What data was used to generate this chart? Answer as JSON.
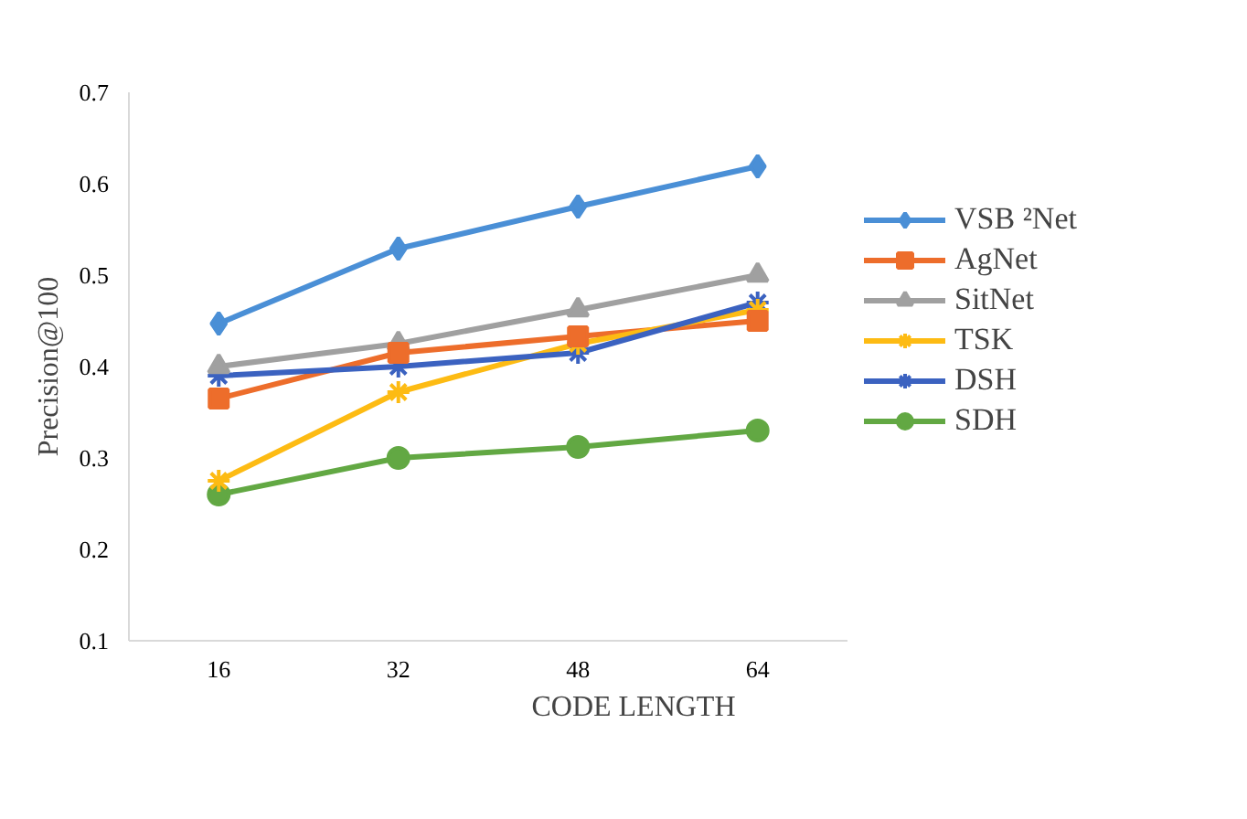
{
  "chart_data": {
    "type": "line",
    "xlabel": "CODE   LENGTH",
    "ylabel": "Precision@100",
    "categories": [
      "16",
      "32",
      "48",
      "64"
    ],
    "ylim": [
      0.1,
      0.7
    ],
    "yticks": [
      0.1,
      0.2,
      0.3,
      0.4,
      0.5,
      0.6,
      0.7
    ],
    "grid": false,
    "legend": "right",
    "line_style": "solid",
    "series": [
      {
        "name": "VSB ²Net",
        "color": "#4a8fd6",
        "marker": "diamond",
        "values": [
          0.447,
          0.529,
          0.575,
          0.619
        ]
      },
      {
        "name": "AgNet",
        "color": "#ed6d2b",
        "marker": "square",
        "values": [
          0.365,
          0.415,
          0.433,
          0.45
        ]
      },
      {
        "name": "SitNet",
        "color": "#a0a0a0",
        "marker": "triangle",
        "values": [
          0.4,
          0.425,
          0.462,
          0.5
        ]
      },
      {
        "name": "TSK",
        "color": "#fdbb13",
        "marker": "cross",
        "values": [
          0.275,
          0.372,
          0.425,
          0.462
        ]
      },
      {
        "name": "DSH",
        "color": "#3b62c0",
        "marker": "cross",
        "values": [
          0.39,
          0.4,
          0.415,
          0.47
        ]
      },
      {
        "name": "SDH",
        "color": "#62a843",
        "marker": "circle",
        "values": [
          0.26,
          0.3,
          0.312,
          0.33
        ]
      }
    ]
  }
}
